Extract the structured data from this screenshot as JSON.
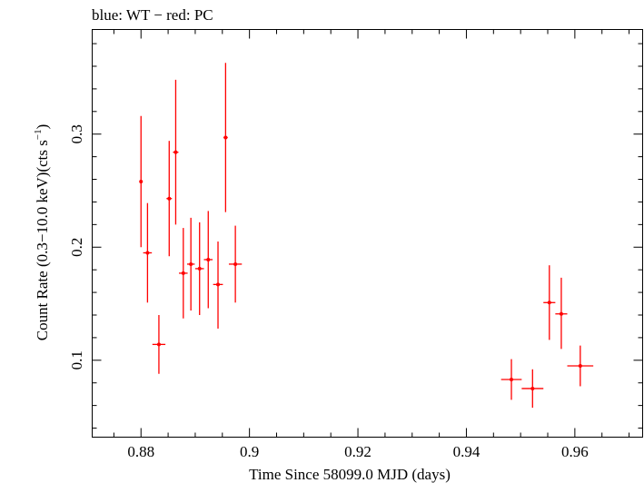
{
  "chart_data": {
    "type": "scatter",
    "title": "blue: WT − red: PC",
    "xlabel": "Time Since 58099.0 MJD (days)",
    "ylabel_main": "Count Rate (0.3−10.0 keV)(cts s",
    "ylabel_sup": "−1",
    "ylabel_close": ")",
    "xlim": [
      0.871,
      0.9725
    ],
    "ylim": [
      0.032,
      0.3925
    ],
    "x_ticks": [
      0.88,
      0.9,
      0.92,
      0.94,
      0.96
    ],
    "x_tick_labels": [
      "0.88",
      "0.9",
      "0.92",
      "0.94",
      "0.96"
    ],
    "y_ticks": [
      0.1,
      0.2,
      0.3
    ],
    "y_tick_labels": [
      "0.1",
      "0.2",
      "0.3"
    ],
    "grid": false,
    "series": [
      {
        "color": "#ff0000",
        "points": [
          {
            "x": 0.88,
            "y": 0.258,
            "xerr": 0.0003,
            "ylo": 0.2,
            "yhi": 0.316
          },
          {
            "x": 0.8812,
            "y": 0.195,
            "xerr": 0.0008,
            "ylo": 0.151,
            "yhi": 0.239
          },
          {
            "x": 0.8833,
            "y": 0.114,
            "xerr": 0.0012,
            "ylo": 0.088,
            "yhi": 0.14
          },
          {
            "x": 0.8852,
            "y": 0.243,
            "xerr": 0.0005,
            "ylo": 0.192,
            "yhi": 0.294
          },
          {
            "x": 0.8864,
            "y": 0.284,
            "xerr": 0.0005,
            "ylo": 0.22,
            "yhi": 0.348
          },
          {
            "x": 0.8878,
            "y": 0.177,
            "xerr": 0.0008,
            "ylo": 0.137,
            "yhi": 0.217
          },
          {
            "x": 0.8892,
            "y": 0.185,
            "xerr": 0.0007,
            "ylo": 0.144,
            "yhi": 0.226
          },
          {
            "x": 0.8908,
            "y": 0.181,
            "xerr": 0.0008,
            "ylo": 0.14,
            "yhi": 0.222
          },
          {
            "x": 0.8924,
            "y": 0.189,
            "xerr": 0.0008,
            "ylo": 0.146,
            "yhi": 0.232
          },
          {
            "x": 0.8942,
            "y": 0.167,
            "xerr": 0.0009,
            "ylo": 0.128,
            "yhi": 0.205
          },
          {
            "x": 0.8956,
            "y": 0.297,
            "xerr": 0.0004,
            "ylo": 0.231,
            "yhi": 0.363
          },
          {
            "x": 0.8974,
            "y": 0.185,
            "xerr": 0.0012,
            "ylo": 0.151,
            "yhi": 0.219
          },
          {
            "x": 0.9483,
            "y": 0.083,
            "xerr": 0.0019,
            "ylo": 0.065,
            "yhi": 0.101
          },
          {
            "x": 0.9522,
            "y": 0.075,
            "xerr": 0.002,
            "ylo": 0.058,
            "yhi": 0.092
          },
          {
            "x": 0.9553,
            "y": 0.151,
            "xerr": 0.0011,
            "ylo": 0.118,
            "yhi": 0.184
          },
          {
            "x": 0.9575,
            "y": 0.141,
            "xerr": 0.0011,
            "ylo": 0.11,
            "yhi": 0.173
          },
          {
            "x": 0.961,
            "y": 0.095,
            "xerr": 0.0024,
            "ylo": 0.077,
            "yhi": 0.113
          }
        ]
      }
    ]
  }
}
